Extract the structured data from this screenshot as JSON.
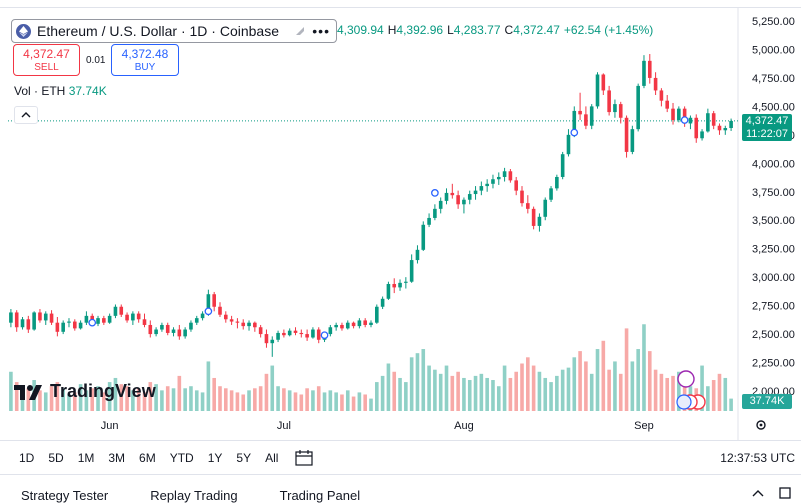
{
  "symbol": {
    "name": "Ethereum / U.S. Dollar · 1D · Coinbase",
    "more": "•••"
  },
  "ohlc": [
    {
      "k": "",
      "v": "4,309.94"
    },
    {
      "k": "H",
      "v": "4,392.96"
    },
    {
      "k": "L",
      "v": "4,283.77"
    },
    {
      "k": "C",
      "v": "4,372.47"
    },
    {
      "k": "",
      "v": "+62.54 (+1.45%)"
    }
  ],
  "trade": {
    "sell_price": "4,372.47",
    "sell_label": "SELL",
    "spread": "0.01",
    "buy_price": "4,372.48",
    "buy_label": "BUY"
  },
  "volume_legend": {
    "label": "Vol · ETH",
    "value": "37.74K"
  },
  "logo": {
    "text": "TradingView"
  },
  "price_axis": {
    "labels": [
      "5,250.00",
      "5,000.00",
      "4,750.00",
      "4,500.00",
      "4,250.00",
      "4,000.00",
      "3,750.00",
      "3,500.00",
      "3,250.00",
      "3,000.00",
      "2,750.00",
      "2,500.00",
      "2,250.00",
      "2,000.00"
    ],
    "last_price": "4,372.47",
    "countdown": "11:22:07",
    "volume_tag": "37.74K"
  },
  "time_axis": {
    "labels": [
      "Jun",
      "Jul",
      "Aug",
      "Sep"
    ]
  },
  "range_buttons": [
    "1D",
    "5D",
    "1M",
    "3M",
    "6M",
    "YTD",
    "1Y",
    "5Y",
    "All"
  ],
  "clock": "12:37:53 UTC",
  "panel_tabs": [
    "Strategy Tester",
    "Replay Trading",
    "Trading Panel"
  ],
  "colors": {
    "up": "#089981",
    "down": "#f23645",
    "vol_up": "#8fd0c6",
    "vol_down": "#f7a9a7",
    "accent": "#2962ff"
  },
  "chart_data": {
    "type": "candlestick",
    "ohlc_daily": [
      [
        2600,
        2720,
        2560,
        2690
      ],
      [
        2690,
        2710,
        2520,
        2560
      ],
      [
        2560,
        2650,
        2540,
        2630
      ],
      [
        2630,
        2660,
        2510,
        2540
      ],
      [
        2540,
        2700,
        2530,
        2690
      ],
      [
        2690,
        2720,
        2600,
        2620
      ],
      [
        2620,
        2700,
        2580,
        2680
      ],
      [
        2680,
        2710,
        2580,
        2600
      ],
      [
        2600,
        2650,
        2480,
        2520
      ],
      [
        2520,
        2620,
        2500,
        2600
      ],
      [
        2600,
        2640,
        2560,
        2610
      ],
      [
        2610,
        2630,
        2530,
        2550
      ],
      [
        2550,
        2620,
        2540,
        2600
      ],
      [
        2600,
        2700,
        2580,
        2660
      ],
      [
        2660,
        2680,
        2570,
        2590
      ],
      [
        2590,
        2660,
        2570,
        2640
      ],
      [
        2640,
        2660,
        2580,
        2600
      ],
      [
        2600,
        2680,
        2590,
        2660
      ],
      [
        2660,
        2760,
        2640,
        2740
      ],
      [
        2740,
        2760,
        2650,
        2670
      ],
      [
        2670,
        2690,
        2600,
        2620
      ],
      [
        2620,
        2700,
        2580,
        2680
      ],
      [
        2680,
        2700,
        2600,
        2630
      ],
      [
        2630,
        2680,
        2560,
        2580
      ],
      [
        2580,
        2620,
        2470,
        2500
      ],
      [
        2500,
        2560,
        2480,
        2540
      ],
      [
        2540,
        2600,
        2520,
        2580
      ],
      [
        2580,
        2600,
        2490,
        2510
      ],
      [
        2510,
        2560,
        2480,
        2540
      ],
      [
        2540,
        2580,
        2450,
        2480
      ],
      [
        2480,
        2560,
        2460,
        2540
      ],
      [
        2540,
        2620,
        2520,
        2600
      ],
      [
        2600,
        2660,
        2580,
        2640
      ],
      [
        2640,
        2700,
        2620,
        2680
      ],
      [
        2680,
        2890,
        2660,
        2850
      ],
      [
        2850,
        2870,
        2700,
        2740
      ],
      [
        2740,
        2780,
        2650,
        2670
      ],
      [
        2670,
        2700,
        2600,
        2630
      ],
      [
        2630,
        2660,
        2580,
        2610
      ],
      [
        2610,
        2640,
        2550,
        2600
      ],
      [
        2600,
        2630,
        2540,
        2570
      ],
      [
        2570,
        2620,
        2530,
        2600
      ],
      [
        2600,
        2610,
        2520,
        2560
      ],
      [
        2560,
        2580,
        2470,
        2500
      ],
      [
        2500,
        2540,
        2380,
        2420
      ],
      [
        2420,
        2480,
        2300,
        2450
      ],
      [
        2450,
        2530,
        2430,
        2510
      ],
      [
        2510,
        2540,
        2470,
        2490
      ],
      [
        2490,
        2550,
        2480,
        2530
      ],
      [
        2530,
        2560,
        2490,
        2510
      ],
      [
        2510,
        2540,
        2470,
        2500
      ],
      [
        2500,
        2540,
        2440,
        2470
      ],
      [
        2470,
        2560,
        2460,
        2540
      ],
      [
        2540,
        2560,
        2420,
        2450
      ],
      [
        2450,
        2520,
        2430,
        2500
      ],
      [
        2500,
        2580,
        2480,
        2560
      ],
      [
        2560,
        2600,
        2530,
        2580
      ],
      [
        2580,
        2600,
        2530,
        2550
      ],
      [
        2550,
        2620,
        2540,
        2600
      ],
      [
        2600,
        2610,
        2550,
        2570
      ],
      [
        2570,
        2640,
        2550,
        2620
      ],
      [
        2620,
        2640,
        2560,
        2580
      ],
      [
        2580,
        2620,
        2560,
        2600
      ],
      [
        2600,
        2760,
        2590,
        2740
      ],
      [
        2740,
        2830,
        2720,
        2810
      ],
      [
        2810,
        2960,
        2800,
        2940
      ],
      [
        2940,
        2990,
        2860,
        2910
      ],
      [
        2910,
        2980,
        2880,
        2950
      ],
      [
        2950,
        3000,
        2900,
        2960
      ],
      [
        2960,
        3200,
        2950,
        3150
      ],
      [
        3150,
        3280,
        3120,
        3240
      ],
      [
        3240,
        3490,
        3230,
        3460
      ],
      [
        3460,
        3560,
        3440,
        3520
      ],
      [
        3520,
        3640,
        3500,
        3600
      ],
      [
        3600,
        3700,
        3560,
        3670
      ],
      [
        3670,
        3780,
        3640,
        3740
      ],
      [
        3740,
        3820,
        3690,
        3720
      ],
      [
        3720,
        3760,
        3600,
        3640
      ],
      [
        3640,
        3700,
        3560,
        3680
      ],
      [
        3680,
        3760,
        3640,
        3730
      ],
      [
        3730,
        3800,
        3680,
        3760
      ],
      [
        3760,
        3840,
        3720,
        3800
      ],
      [
        3800,
        3860,
        3750,
        3820
      ],
      [
        3820,
        3900,
        3780,
        3860
      ],
      [
        3860,
        3920,
        3810,
        3880
      ],
      [
        3880,
        3960,
        3840,
        3930
      ],
      [
        3930,
        3950,
        3830,
        3850
      ],
      [
        3850,
        3880,
        3720,
        3760
      ],
      [
        3760,
        3800,
        3620,
        3650
      ],
      [
        3650,
        3720,
        3560,
        3600
      ],
      [
        3600,
        3620,
        3420,
        3450
      ],
      [
        3450,
        3560,
        3400,
        3530
      ],
      [
        3530,
        3700,
        3500,
        3680
      ],
      [
        3680,
        3800,
        3660,
        3780
      ],
      [
        3780,
        3900,
        3760,
        3880
      ],
      [
        3880,
        4100,
        3860,
        4080
      ],
      [
        4080,
        4300,
        4060,
        4250
      ],
      [
        4250,
        4500,
        4230,
        4460
      ],
      [
        4460,
        4620,
        4380,
        4430
      ],
      [
        4430,
        4500,
        4300,
        4330
      ],
      [
        4330,
        4520,
        4300,
        4500
      ],
      [
        4500,
        4800,
        4480,
        4780
      ],
      [
        4780,
        4790,
        4600,
        4640
      ],
      [
        4640,
        4680,
        4420,
        4450
      ],
      [
        4450,
        4560,
        4400,
        4520
      ],
      [
        4520,
        4540,
        4350,
        4400
      ],
      [
        4400,
        4420,
        4050,
        4100
      ],
      [
        4100,
        4330,
        4080,
        4300
      ],
      [
        4300,
        4700,
        4280,
        4680
      ],
      [
        4680,
        4950,
        4660,
        4900
      ],
      [
        4900,
        4960,
        4700,
        4750
      ],
      [
        4750,
        4800,
        4600,
        4640
      ],
      [
        4640,
        4660,
        4500,
        4550
      ],
      [
        4550,
        4600,
        4450,
        4480
      ],
      [
        4480,
        4530,
        4340,
        4380
      ],
      [
        4380,
        4500,
        4360,
        4480
      ],
      [
        4480,
        4500,
        4320,
        4350
      ],
      [
        4350,
        4420,
        4300,
        4400
      ],
      [
        4400,
        4430,
        4180,
        4220
      ],
      [
        4220,
        4300,
        4200,
        4280
      ],
      [
        4280,
        4480,
        4270,
        4440
      ],
      [
        4440,
        4460,
        4300,
        4330
      ],
      [
        4330,
        4350,
        4250,
        4290
      ],
      [
        4290,
        4330,
        4250,
        4310
      ],
      [
        4310,
        4393,
        4284,
        4372
      ]
    ],
    "volume_daily": [
      95,
      70,
      60,
      55,
      75,
      50,
      45,
      60,
      70,
      55,
      40,
      45,
      65,
      50,
      55,
      60,
      45,
      70,
      80,
      65,
      60,
      50,
      55,
      45,
      70,
      65,
      50,
      60,
      55,
      85,
      55,
      60,
      50,
      45,
      120,
      80,
      60,
      55,
      50,
      45,
      40,
      50,
      55,
      60,
      90,
      110,
      60,
      55,
      50,
      45,
      40,
      55,
      50,
      60,
      45,
      50,
      45,
      40,
      50,
      35,
      45,
      40,
      30,
      70,
      85,
      115,
      95,
      80,
      70,
      130,
      140,
      150,
      110,
      100,
      90,
      110,
      85,
      95,
      80,
      75,
      85,
      90,
      80,
      75,
      60,
      110,
      80,
      95,
      115,
      130,
      110,
      95,
      80,
      70,
      85,
      100,
      105,
      130,
      145,
      120,
      90,
      150,
      170,
      100,
      120,
      90,
      200,
      120,
      150,
      210,
      145,
      100,
      90,
      80,
      85,
      95,
      70,
      60,
      55,
      110,
      60,
      75,
      90,
      80,
      30
    ],
    "ylim": [
      2000,
      5250
    ],
    "x_labels": [
      "Jun",
      "Jul",
      "Aug",
      "Sep"
    ]
  }
}
